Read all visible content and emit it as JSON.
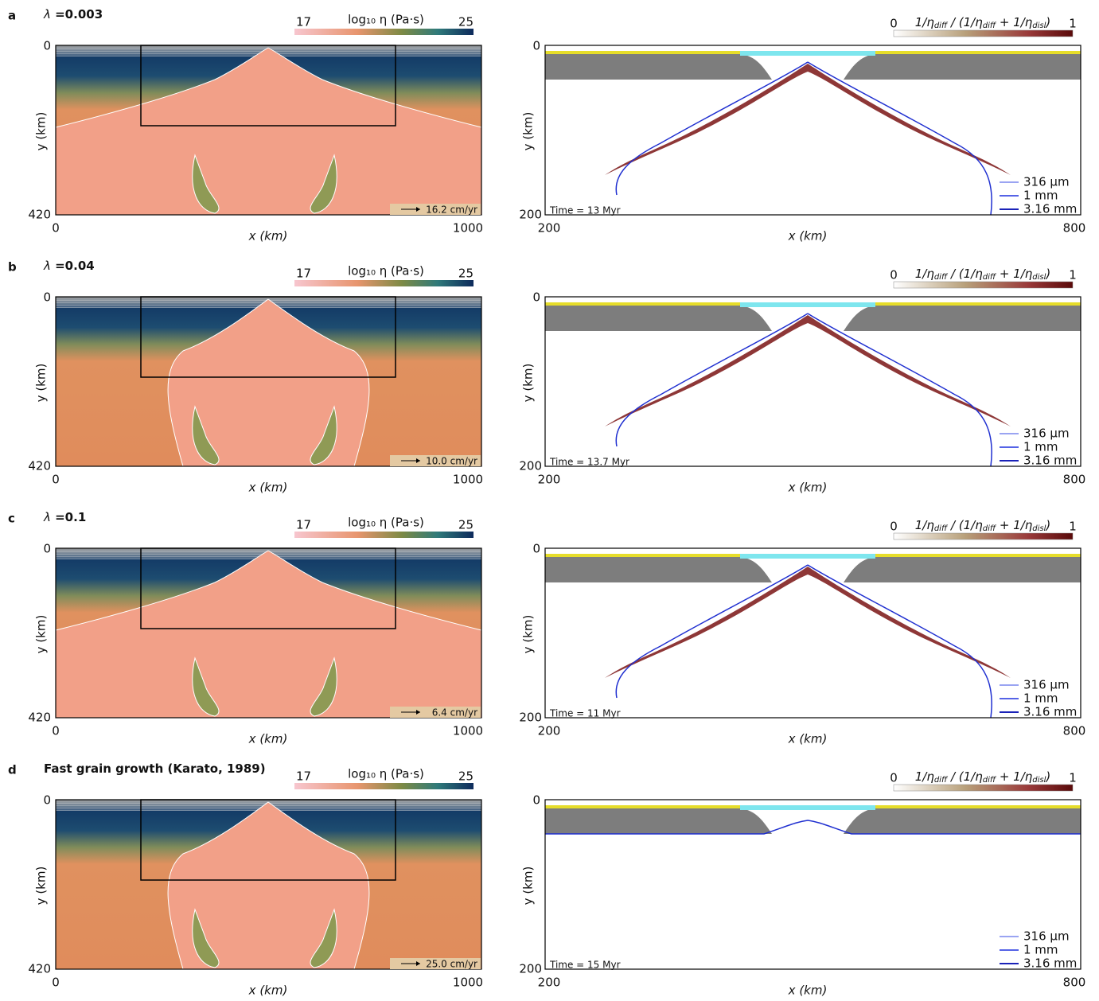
{
  "left_axes": {
    "colorbar_title": "log₁₀ η (Pa·s)",
    "colorbar_min": "17",
    "colorbar_max": "25",
    "y_label": "y (km)",
    "x_label": "x (km)",
    "y_ticks": [
      "0",
      "420"
    ],
    "x_ticks": [
      "0",
      "1000"
    ]
  },
  "right_axes": {
    "colorbar_title": [
      "1/η",
      "diff",
      " / (1/η",
      "diff",
      " + 1/η",
      "disl",
      ")"
    ],
    "colorbar_min": "0",
    "colorbar_max": "1",
    "y_label": "y (km)",
    "x_label": "x (km)",
    "y_ticks": [
      "0",
      "200"
    ],
    "x_ticks": [
      "200",
      "800"
    ],
    "legend": [
      "316 μm",
      "1 mm",
      "3.16 mm"
    ]
  },
  "rows": [
    {
      "letter": "a",
      "symbol": "λ",
      "label": " =0.003",
      "velocity_scale": "16.2 cm/yr",
      "time": "Time = 13 Myr"
    },
    {
      "letter": "b",
      "symbol": "λ",
      "label": " =0.04",
      "velocity_scale": "10.0 cm/yr",
      "time": "Time = 13.7 Myr"
    },
    {
      "letter": "c",
      "symbol": "λ",
      "label": " =0.1",
      "velocity_scale": "6.4 cm/yr",
      "time": "Time = 11 Myr"
    },
    {
      "letter": "d",
      "label": "Fast grain growth (Karato, 1989)",
      "velocity_scale": "25.0 cm/yr",
      "time": "Time = 15 Myr"
    }
  ]
}
